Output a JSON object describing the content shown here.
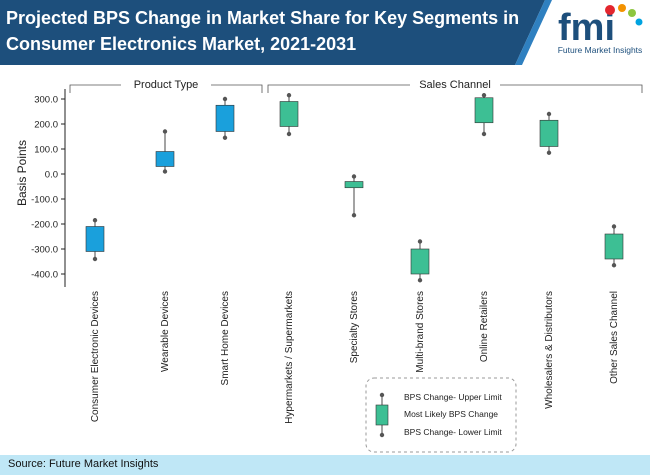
{
  "header": {
    "title": "Projected BPS Change in Market Share for Key Segments in Consumer Electronics Market, 2021-2031",
    "logo_text": "fmi",
    "logo_subtitle": "Future Market Insights"
  },
  "source": "Source: Future Market Insights",
  "colors": {
    "header_bg": "#1d4f7c",
    "product_type": "#1aa0dc",
    "sales_channel": "#3dbf94",
    "source_bg": "#bfe7f6"
  },
  "chart_data": {
    "type": "box",
    "ylabel": "Basis Points",
    "ylim": [
      -430,
      330
    ],
    "yticks": [
      300,
      200,
      100,
      0,
      -100,
      -200,
      -300,
      -400
    ],
    "ytick_labels": [
      "300.0",
      "200.0",
      "100.0",
      "0.0",
      "-100.0",
      "-200.0",
      "-300.0",
      "-400.0"
    ],
    "groups": [
      {
        "label": "Product Type",
        "color": "#1aa0dc",
        "categories": [
          0,
          1,
          2
        ]
      },
      {
        "label": "Sales Channel",
        "color": "#3dbf94",
        "categories": [
          3,
          4,
          5,
          6,
          7,
          8
        ]
      }
    ],
    "categories": [
      "Consumer Electronic Devices",
      "Wearable Devices",
      "Smart Home Devices",
      "Hypermarkets / Supermarkets",
      "Specialty Stores",
      "Multi-brand Stores",
      "Online Retailers",
      "Wholesalers & Distributors",
      "Other Sales Channel"
    ],
    "boxes": [
      {
        "upper": -185,
        "q3": -210,
        "q1": -310,
        "lower": -340
      },
      {
        "upper": 170,
        "q3": 90,
        "q1": 30,
        "lower": 10
      },
      {
        "upper": 300,
        "q3": 275,
        "q1": 170,
        "lower": 145
      },
      {
        "upper": 315,
        "q3": 290,
        "q1": 190,
        "lower": 160
      },
      {
        "upper": -10,
        "q3": -30,
        "q1": -55,
        "lower": -165
      },
      {
        "upper": -270,
        "q3": -300,
        "q1": -400,
        "lower": -425
      },
      {
        "upper": 315,
        "q3": 305,
        "q1": 205,
        "lower": 160
      },
      {
        "upper": 240,
        "q3": 215,
        "q1": 110,
        "lower": 85
      },
      {
        "upper": -210,
        "q3": -240,
        "q1": -340,
        "lower": -365
      }
    ],
    "legend": {
      "upper": "BPS Change- Upper Limit",
      "likely": "Most Likely BPS Change",
      "lower": "BPS Change- Lower Limit",
      "placement": "bottom-right"
    }
  }
}
